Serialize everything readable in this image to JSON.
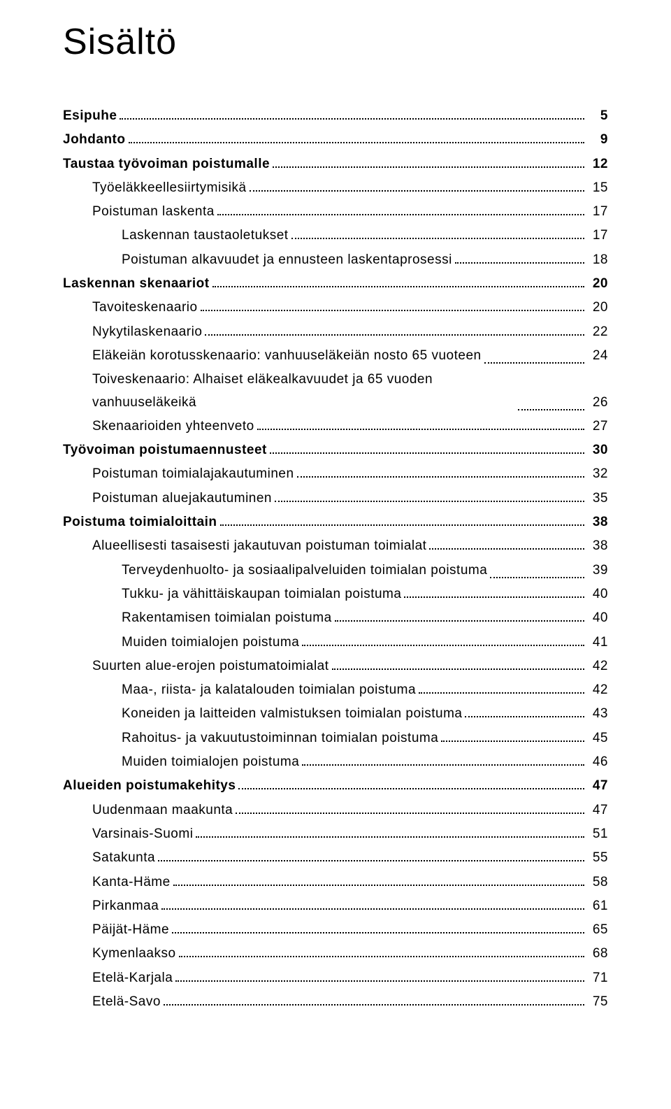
{
  "heading": "Sisältö",
  "toc": [
    {
      "level": 0,
      "title": "Esipuhe",
      "page": "5"
    },
    {
      "level": 0,
      "title": "Johdanto",
      "page": "9"
    },
    {
      "level": 0,
      "title": "Taustaa työvoiman poistumalle",
      "page": "12"
    },
    {
      "level": 1,
      "title": "Työeläkkeellesiirtymisikä",
      "page": "15"
    },
    {
      "level": 1,
      "title": "Poistuman laskenta",
      "page": "17"
    },
    {
      "level": 2,
      "title": "Laskennan taustaoletukset",
      "page": "17"
    },
    {
      "level": 2,
      "title": "Poistuman alkavuudet ja ennusteen laskentaprosessi",
      "page": "18"
    },
    {
      "level": 0,
      "title": "Laskennan skenaariot",
      "page": "20"
    },
    {
      "level": 1,
      "title": "Tavoiteskenaario",
      "page": "20"
    },
    {
      "level": 1,
      "title": "Nykytilaskenaario",
      "page": "22"
    },
    {
      "level": 1,
      "title": "Eläkeiän korotusskenaario: vanhuuseläkeiän nosto 65 vuoteen",
      "page": "24"
    },
    {
      "level": 1,
      "title": "Toiveskenaario: Alhaiset eläkealkavuudet ja 65 vuoden vanhuuseläkeikä",
      "page": "26"
    },
    {
      "level": 1,
      "title": "Skenaarioiden yhteenveto",
      "page": "27"
    },
    {
      "level": 0,
      "title": "Työvoiman poistumaennusteet",
      "page": "30"
    },
    {
      "level": 1,
      "title": "Poistuman toimialajakautuminen",
      "page": "32"
    },
    {
      "level": 1,
      "title": "Poistuman aluejakautuminen",
      "page": "35"
    },
    {
      "level": 0,
      "title": "Poistuma toimialoittain",
      "page": "38"
    },
    {
      "level": 1,
      "title": "Alueellisesti tasaisesti jakautuvan poistuman toimialat",
      "page": "38"
    },
    {
      "level": 2,
      "title": "Terveydenhuolto- ja sosiaalipalveluiden toimialan poistuma",
      "page": "39"
    },
    {
      "level": 2,
      "title": "Tukku- ja vähittäiskaupan toimialan poistuma",
      "page": "40"
    },
    {
      "level": 2,
      "title": "Rakentamisen toimialan poistuma",
      "page": "40"
    },
    {
      "level": 2,
      "title": "Muiden toimialojen poistuma",
      "page": "41"
    },
    {
      "level": 1,
      "title": "Suurten alue-erojen poistumatoimialat",
      "page": "42"
    },
    {
      "level": 2,
      "title": "Maa-, riista- ja kalatalouden toimialan poistuma",
      "page": "42"
    },
    {
      "level": 2,
      "title": "Koneiden ja laitteiden valmistuksen toimialan poistuma",
      "page": "43"
    },
    {
      "level": 2,
      "title": "Rahoitus- ja vakuutustoiminnan toimialan poistuma",
      "page": "45"
    },
    {
      "level": 2,
      "title": "Muiden toimialojen poistuma",
      "page": "46"
    },
    {
      "level": 0,
      "title": "Alueiden poistumakehitys",
      "page": "47"
    },
    {
      "level": 1,
      "title": "Uudenmaan maakunta",
      "page": "47"
    },
    {
      "level": 1,
      "title": "Varsinais-Suomi",
      "page": "51"
    },
    {
      "level": 1,
      "title": "Satakunta",
      "page": "55"
    },
    {
      "level": 1,
      "title": "Kanta-Häme",
      "page": "58"
    },
    {
      "level": 1,
      "title": "Pirkanmaa",
      "page": "61"
    },
    {
      "level": 1,
      "title": "Päijät-Häme",
      "page": "65"
    },
    {
      "level": 1,
      "title": "Kymenlaakso",
      "page": "68"
    },
    {
      "level": 1,
      "title": "Etelä-Karjala",
      "page": "71"
    },
    {
      "level": 1,
      "title": "Etelä-Savo",
      "page": "75"
    }
  ]
}
